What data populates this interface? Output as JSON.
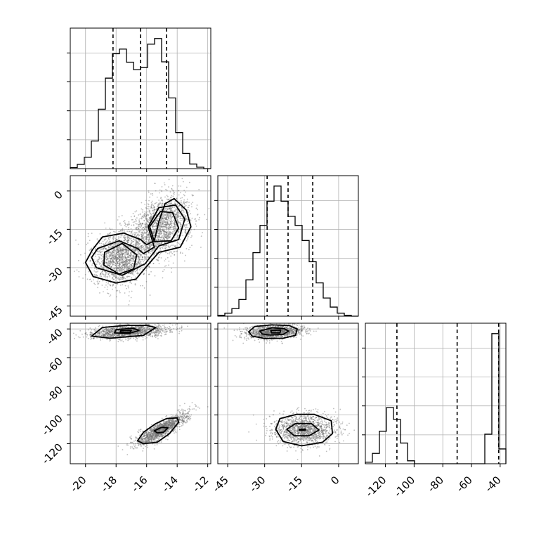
{
  "chart_data": {
    "type": "corner",
    "title": "",
    "grid": true,
    "colors": {
      "points": "#6f6f6f",
      "line": "#000000",
      "grid": "#b0b0b0",
      "background": "#ffffff"
    },
    "parameters": [
      {
        "xlabel": "",
        "range": [
          -21,
          -11.8
        ],
        "ticks": [
          "-20",
          "-18",
          "-16",
          "-14",
          "-12"
        ],
        "tick_values": [
          -20,
          -18,
          -16,
          -14,
          -12
        ]
      },
      {
        "xlabel": "",
        "range": [
          -49,
          8
        ],
        "ticks": [
          "-45",
          "-30",
          "-15",
          "0"
        ],
        "tick_values": [
          -45,
          -30,
          -15,
          0
        ]
      },
      {
        "xlabel": "",
        "range": [
          -134,
          -36
        ],
        "ticks": [
          "-120",
          "-100",
          "-80",
          "-60",
          "-40"
        ],
        "tick_values": [
          -120,
          -100,
          -80,
          -60,
          -40
        ]
      }
    ],
    "row_ticks": [
      {
        "row": 1,
        "ticks": [
          "0",
          "-15",
          "-30",
          "-45"
        ],
        "tick_values": [
          0,
          -15,
          -30,
          -45
        ]
      },
      {
        "row": 2,
        "ticks": [
          "-40",
          "-60",
          "-80",
          "-100",
          "-120"
        ],
        "tick_values": [
          -40,
          -60,
          -80,
          -100,
          -120
        ]
      }
    ],
    "histograms": [
      {
        "param": 0,
        "quantiles": [
          -18.2,
          -16.4,
          -14.7
        ],
        "bin_edges": [
          -21,
          -20.54,
          -20.08,
          -19.62,
          -19.16,
          -18.7,
          -18.24,
          -17.78,
          -17.32,
          -16.86,
          -16.4,
          -15.94,
          -15.48,
          -15.02,
          -14.56,
          -14.1,
          -13.64,
          -13.18,
          -12.72,
          -12.26,
          -11.8
        ],
        "counts": [
          0.3,
          1.2,
          3.2,
          7.8,
          16.8,
          25.6,
          32.5,
          33.8,
          30.1,
          28.0,
          28.6,
          35.2,
          36.8,
          30.2,
          20.0,
          10.2,
          4.3,
          1.3,
          0.4,
          0
        ]
      },
      {
        "param": 1,
        "quantiles": [
          -29,
          -20.5,
          -10.5
        ],
        "bin_edges": [
          -49,
          -46.15,
          -43.3,
          -40.45,
          -37.6,
          -34.75,
          -31.9,
          -29.05,
          -26.2,
          -23.35,
          -20.5,
          -17.65,
          -14.8,
          -11.95,
          -9.1,
          -6.25,
          -3.4,
          -0.55,
          2.3,
          5.15,
          8
        ],
        "counts": [
          0.3,
          1.0,
          2.5,
          5.5,
          12.0,
          21.0,
          30.0,
          38.0,
          43.0,
          38.0,
          33.0,
          30.0,
          25.0,
          18.0,
          11.0,
          6.0,
          3.0,
          1.0,
          0.3,
          0
        ]
      },
      {
        "param": 2,
        "quantiles": [
          -112,
          -70,
          -41
        ],
        "bin_edges": [
          -134,
          -129.1,
          -124.2,
          -119.3,
          -114.4,
          -109.5,
          -104.6,
          -99.7,
          -94.8,
          -89.9,
          -85,
          -80.1,
          -75.2,
          -70.3,
          -65.4,
          -60.5,
          -55.6,
          -50.7,
          -45.8,
          -40.9,
          -36
        ],
        "counts": [
          0.5,
          3.5,
          11.0,
          19.0,
          15.0,
          7.0,
          1.0,
          0,
          0,
          0,
          0,
          0,
          0,
          0,
          0,
          0,
          0,
          10.0,
          44.0,
          5.0
        ]
      }
    ],
    "scatter_panels": [
      {
        "x_param": 0,
        "y_param": 1,
        "y_range": [
          -49,
          6
        ],
        "modes": [
          {
            "mean": [
              -17.7,
              -26
            ],
            "sd": [
              0.95,
              5.5
            ],
            "rho": 0.15,
            "n": 1700
          },
          {
            "mean": [
              -15.0,
              -14
            ],
            "sd": [
              0.95,
              6.0
            ],
            "rho": 0.3,
            "n": 1700
          }
        ],
        "contours": [
          [
            [
              -19.55,
              -23
            ],
            [
              -18.9,
              -18
            ],
            [
              -17.5,
              -16.5
            ],
            [
              -16.4,
              -19
            ],
            [
              -16.0,
              -21
            ],
            [
              -15.5,
              -19.5
            ],
            [
              -15.2,
              -12
            ],
            [
              -14.8,
              -5
            ],
            [
              -14.2,
              -3
            ],
            [
              -13.4,
              -7.5
            ],
            [
              -13.1,
              -14
            ],
            [
              -13.8,
              -22
            ],
            [
              -15.2,
              -24
            ],
            [
              -16.0,
              -29.5
            ],
            [
              -16.7,
              -34.5
            ],
            [
              -18.0,
              -36
            ],
            [
              -19.5,
              -33.5
            ],
            [
              -20.0,
              -28
            ]
          ],
          [
            [
              -19.2,
              -22.5
            ],
            [
              -17.8,
              -19.5
            ],
            [
              -16.6,
              -22.5
            ],
            [
              -16.2,
              -24.5
            ],
            [
              -15.5,
              -22
            ],
            [
              -15.9,
              -14
            ],
            [
              -15.2,
              -6.5
            ],
            [
              -14.1,
              -5.5
            ],
            [
              -13.5,
              -11
            ],
            [
              -13.9,
              -19
            ],
            [
              -15.2,
              -21.5
            ],
            [
              -16.1,
              -28.5
            ],
            [
              -17.6,
              -33
            ],
            [
              -19.3,
              -30
            ],
            [
              -19.6,
              -26
            ]
          ],
          [
            [
              -18.75,
              -24
            ],
            [
              -17.6,
              -20.5
            ],
            [
              -16.65,
              -25
            ],
            [
              -16.85,
              -30.5
            ],
            [
              -17.8,
              -32.5
            ],
            [
              -18.8,
              -29
            ]
          ],
          [
            [
              -15.8,
              -14
            ],
            [
              -15.1,
              -8
            ],
            [
              -14.3,
              -8.5
            ],
            [
              -13.9,
              -14.5
            ],
            [
              -14.4,
              -19.5
            ],
            [
              -15.5,
              -19.8
            ]
          ]
        ]
      },
      {
        "x_param": 0,
        "y_param": 2,
        "y_range": [
          -134,
          -36
        ],
        "modes": [
          {
            "mean": [
              -17.2,
              -42
            ],
            "sd": [
              1.25,
              2.4
            ],
            "rho": 0.4,
            "n": 1400
          },
          {
            "mean": [
              -15.0,
              -110
            ],
            "sd": [
              0.85,
              5.5
            ],
            "rho": 0.85,
            "n": 1400
          }
        ],
        "contours": [
          [
            [
              -19.6,
              -45
            ],
            [
              -18.9,
              -39
            ],
            [
              -17.4,
              -37.5
            ],
            [
              -16.0,
              -37.5
            ],
            [
              -15.4,
              -39
            ],
            [
              -16.2,
              -44.5
            ],
            [
              -18.4,
              -46.5
            ]
          ],
          [
            [
              -18.0,
              -40.5
            ],
            [
              -16.9,
              -39.5
            ],
            [
              -16.5,
              -41
            ],
            [
              -17.1,
              -43
            ],
            [
              -18.1,
              -42.8
            ]
          ],
          [
            [
              -17.7,
              -41.2
            ],
            [
              -17.0,
              -41
            ],
            [
              -17.1,
              -42.4
            ],
            [
              -17.7,
              -42.3
            ]
          ],
          [
            [
              -16.6,
              -118
            ],
            [
              -16.2,
              -112
            ],
            [
              -15.4,
              -106
            ],
            [
              -14.7,
              -102.5
            ],
            [
              -14.0,
              -102
            ],
            [
              -13.9,
              -105
            ],
            [
              -14.5,
              -113
            ],
            [
              -15.3,
              -119
            ],
            [
              -16.2,
              -120
            ]
          ],
          [
            [
              -15.5,
              -111
            ],
            [
              -15.0,
              -108.5
            ],
            [
              -14.6,
              -109
            ],
            [
              -14.9,
              -112
            ],
            [
              -15.3,
              -112.5
            ]
          ]
        ]
      },
      {
        "x_param": 1,
        "y_param": 2,
        "y_range": [
          -134,
          -36
        ],
        "modes": [
          {
            "mean": [
              -26,
              -42
            ],
            "sd": [
              5.5,
              2.4
            ],
            "rho": 0.2,
            "n": 1400
          },
          {
            "mean": [
              -14,
              -110
            ],
            "sd": [
              6.5,
              5.5
            ],
            "rho": 0.0,
            "n": 1400
          }
        ],
        "contours": [
          [
            [
              -36.5,
              -42
            ],
            [
              -34.0,
              -38.3
            ],
            [
              -27.0,
              -37.2
            ],
            [
              -20.0,
              -37.6
            ],
            [
              -16.8,
              -40
            ],
            [
              -17.5,
              -44.5
            ],
            [
              -22.5,
              -46.5
            ],
            [
              -30.0,
              -46.7
            ],
            [
              -35.0,
              -45
            ]
          ],
          [
            [
              -32.0,
              -41.5
            ],
            [
              -27.0,
              -39.2
            ],
            [
              -22.0,
              -39.8
            ],
            [
              -20.3,
              -41.5
            ],
            [
              -22.5,
              -43.8
            ],
            [
              -28.0,
              -44.3
            ],
            [
              -31.0,
              -43.5
            ]
          ],
          [
            [
              -27.5,
              -41
            ],
            [
              -23.5,
              -40.8
            ],
            [
              -23.8,
              -42.8
            ],
            [
              -27.2,
              -42.7
            ]
          ],
          [
            [
              -25.5,
              -110
            ],
            [
              -23.8,
              -102.5
            ],
            [
              -17.0,
              -99.5
            ],
            [
              -10.0,
              -99.5
            ],
            [
              -3.0,
              -104
            ],
            [
              -2.5,
              -113
            ],
            [
              -6.5,
              -119
            ],
            [
              -15.0,
              -121.5
            ],
            [
              -22.5,
              -118.5
            ]
          ],
          [
            [
              -21.0,
              -110
            ],
            [
              -17.5,
              -106
            ],
            [
              -11.0,
              -106
            ],
            [
              -8.0,
              -110.5
            ],
            [
              -12.0,
              -114.5
            ],
            [
              -18.0,
              -114.5
            ]
          ],
          [
            [
              -16.0,
              -110
            ],
            [
              -13.5,
              -109.8
            ],
            [
              -13.5,
              -110.6
            ],
            [
              -16.0,
              -110.6
            ]
          ]
        ]
      }
    ]
  }
}
